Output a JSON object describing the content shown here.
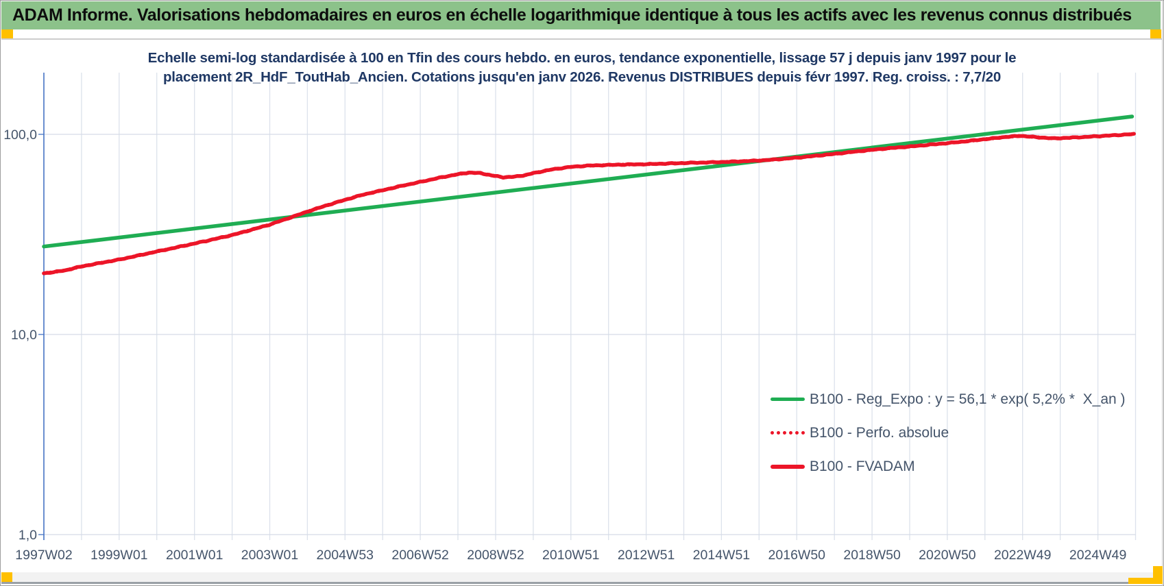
{
  "header": {
    "title": "ADAM Informe. Valorisations hebdomadaires en euros en échelle logarithmique identique à tous les actifs avec les revenus connus distribués"
  },
  "colors": {
    "header_bg": "#8cc28a",
    "handle_orange": "#FFC000",
    "title_navy": "#1f3864",
    "axis_label": "#44546A",
    "axis_line_blue": "#4472C4",
    "gridline": "#dce2ec",
    "series_green": "#1fad53",
    "series_red": "#ec1528"
  },
  "chart_data": {
    "type": "line",
    "title_line1": "Echelle semi-log standardisée à 100 en Tfin des cours hebdo. en euros, tendance exponentielle, lissage 57 j depuis janv 1997 pour le",
    "title_line2": "placement 2R_HdF_ToutHab_Ancien. Cotations jusqu'en janv 2026. Revenus DISTRIBUES depuis févr 1997. Reg. croiss. : 7,7/20",
    "x_axis": {
      "tick_labels": [
        "1997W02",
        "1999W01",
        "2001W01",
        "2003W01",
        "2004W53",
        "2006W52",
        "2008W52",
        "2010W51",
        "2012W51",
        "2014W51",
        "2016W50",
        "2018W50",
        "2020W50",
        "2022W49",
        "2024W49"
      ],
      "range_years": [
        1997.04,
        2026.0
      ],
      "gridlines": "every 52 weeks (yearly), labels every 104 weeks"
    },
    "y_axis": {
      "scale": "log",
      "tick_labels": [
        "100,0",
        "10,0",
        "1,0"
      ],
      "tick_values": [
        100,
        10,
        1
      ],
      "range": [
        1,
        200
      ]
    },
    "grid": true,
    "legend_position": "lower-right",
    "series": [
      {
        "name": "B100 - Reg_Expo : y = 56,1 * exp( 5,2% *  X_an )",
        "color": "#1fad53",
        "style": "solid",
        "width": 5.5,
        "points": [
          [
            1997.04,
            27.5
          ],
          [
            2025.85,
            122.8
          ]
        ]
      },
      {
        "name": "B100 - Perfo. absolue",
        "color": "#ec1528",
        "style": "dotted",
        "width": 5.5,
        "same_points_as": 2
      },
      {
        "name": "B100 - FVADAM",
        "color": "#ec1528",
        "style": "solid",
        "width": 5.5,
        "jitter": true,
        "points": [
          [
            1997.04,
            20.2
          ],
          [
            1997.3,
            20.5
          ],
          [
            1997.6,
            20.9
          ],
          [
            1998,
            21.8
          ],
          [
            1998.5,
            22.7
          ],
          [
            1999,
            23.6
          ],
          [
            1999.5,
            24.7
          ],
          [
            2000,
            25.9
          ],
          [
            2000.5,
            27.1
          ],
          [
            2001,
            28.4
          ],
          [
            2001.5,
            29.8
          ],
          [
            2002,
            31.3
          ],
          [
            2002.5,
            33.2
          ],
          [
            2003,
            35.3
          ],
          [
            2003.5,
            38.0
          ],
          [
            2004,
            41.0
          ],
          [
            2004.5,
            44.0
          ],
          [
            2005,
            47.0
          ],
          [
            2005.5,
            50.0
          ],
          [
            2006,
            52.5
          ],
          [
            2006.5,
            55.2
          ],
          [
            2007,
            57.8
          ],
          [
            2007.5,
            60.6
          ],
          [
            2008,
            63.2
          ],
          [
            2008.3,
            64.4
          ],
          [
            2008.6,
            64.0
          ],
          [
            2008.9,
            62.3
          ],
          [
            2009.2,
            61.0
          ],
          [
            2009.5,
            61.4
          ],
          [
            2009.8,
            62.6
          ],
          [
            2010,
            64.0
          ],
          [
            2010.5,
            66.8
          ],
          [
            2011,
            68.8
          ],
          [
            2011.5,
            69.8
          ],
          [
            2012,
            70.3
          ],
          [
            2012.5,
            70.7
          ],
          [
            2013,
            70.9
          ],
          [
            2013.5,
            71.4
          ],
          [
            2014,
            71.9
          ],
          [
            2014.5,
            72.3
          ],
          [
            2015,
            72.7
          ],
          [
            2015.5,
            73.3
          ],
          [
            2016,
            74.0
          ],
          [
            2016.5,
            75.1
          ],
          [
            2017,
            76.5
          ],
          [
            2017.5,
            78.2
          ],
          [
            2018,
            80.0
          ],
          [
            2018.5,
            81.9
          ],
          [
            2019,
            83.8
          ],
          [
            2019.5,
            85.5
          ],
          [
            2020,
            87.0
          ],
          [
            2020.5,
            88.8
          ],
          [
            2021,
            90.5
          ],
          [
            2021.5,
            92.5
          ],
          [
            2022,
            94.8
          ],
          [
            2022.5,
            97.0
          ],
          [
            2022.9,
            98.3
          ],
          [
            2023.3,
            96.8
          ],
          [
            2023.8,
            95.4
          ],
          [
            2024.2,
            96.2
          ],
          [
            2024.6,
            97.0
          ],
          [
            2025,
            98.0
          ],
          [
            2025.4,
            99.0
          ],
          [
            2025.9,
            100.3
          ]
        ]
      }
    ]
  }
}
